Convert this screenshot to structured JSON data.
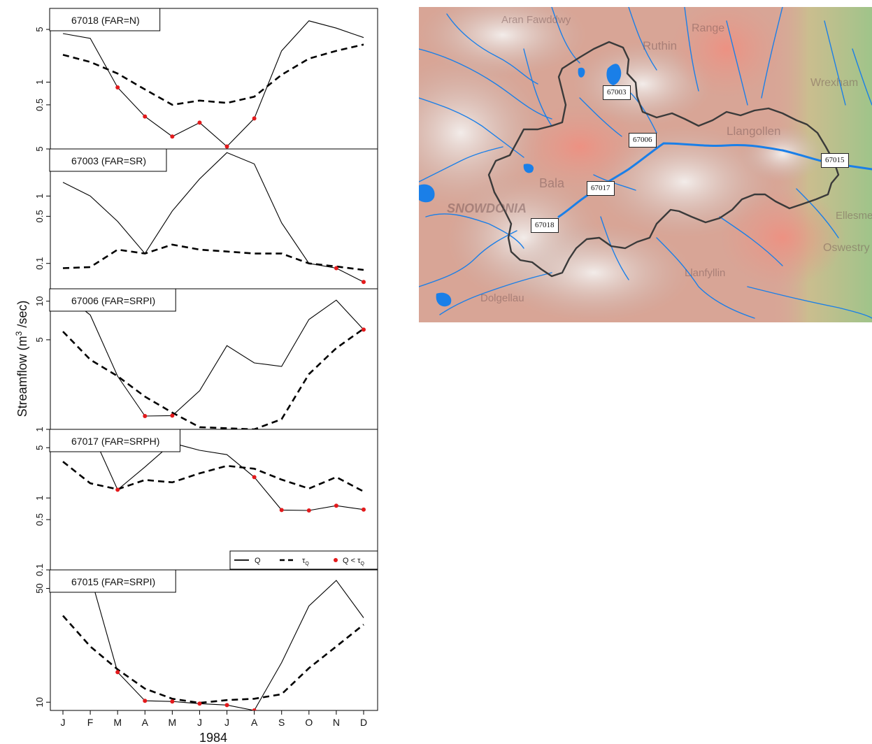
{
  "figure": {
    "ylabel": "Streamflow (m",
    "ylabel_sup": "3",
    "ylabel_tail": " /sec)",
    "xlabel": "1984",
    "months": [
      "J",
      "F",
      "M",
      "A",
      "M",
      "J",
      "J",
      "A",
      "S",
      "O",
      "N",
      "D"
    ]
  },
  "legend": {
    "q_label": "Q",
    "tau_label": "τ",
    "tau_sub": "Q",
    "below_label": "Q < τ",
    "below_sub": "Q",
    "colors": {
      "line": "#000000",
      "below_point": "#e31a1c"
    }
  },
  "chart_data": [
    {
      "type": "line",
      "title": "67018 (FAR=N)",
      "x": [
        "J",
        "F",
        "M",
        "A",
        "M",
        "J",
        "J",
        "A",
        "S",
        "O",
        "N",
        "D"
      ],
      "yscale": "log",
      "ylim": [
        0.13,
        9.5
      ],
      "yticks": [
        5,
        1,
        0.5
      ],
      "series": [
        {
          "name": "Q",
          "style": "solid",
          "values": [
            4.4,
            3.8,
            0.85,
            0.35,
            0.19,
            0.29,
            0.14,
            0.33,
            2.6,
            6.5,
            5.2,
            3.9
          ]
        },
        {
          "name": "τQ",
          "style": "dashed",
          "values": [
            2.3,
            1.85,
            1.3,
            0.8,
            0.5,
            0.57,
            0.53,
            0.64,
            1.25,
            2.05,
            2.6,
            3.15
          ]
        }
      ],
      "below_months": [
        "M",
        "A",
        "M",
        "J",
        "J",
        "A"
      ]
    },
    {
      "type": "line",
      "title": "67003 (FAR=SR)",
      "x": [
        "J",
        "F",
        "M",
        "A",
        "M",
        "J",
        "J",
        "A",
        "S",
        "O",
        "N",
        "D"
      ],
      "yscale": "log",
      "ylim": [
        0.042,
        5.0
      ],
      "yticks": [
        5,
        1,
        0.5,
        0.1
      ],
      "series": [
        {
          "name": "Q",
          "style": "solid",
          "values": [
            1.6,
            1.0,
            0.42,
            0.14,
            0.6,
            1.8,
            4.4,
            3.0,
            0.4,
            0.1,
            0.085,
            0.053
          ]
        },
        {
          "name": "τQ",
          "style": "dashed",
          "values": [
            0.085,
            0.088,
            0.16,
            0.14,
            0.19,
            0.16,
            0.15,
            0.14,
            0.14,
            0.1,
            0.09,
            0.08
          ]
        }
      ],
      "below_months": [
        "N",
        "D"
      ]
    },
    {
      "type": "line",
      "title": "67006 (FAR=SRPI)",
      "x": [
        "J",
        "F",
        "M",
        "A",
        "M",
        "J",
        "J",
        "A",
        "S",
        "O",
        "N",
        "D"
      ],
      "yscale": "log",
      "ylim": [
        1.0,
        12.5
      ],
      "yticks": [
        10,
        5,
        1
      ],
      "series": [
        {
          "name": "Q",
          "style": "solid",
          "values": [
            11.5,
            7.8,
            2.6,
            1.27,
            1.28,
            2.0,
            4.5,
            3.3,
            3.1,
            7.2,
            10.2,
            6.0
          ]
        },
        {
          "name": "τQ",
          "style": "dashed",
          "values": [
            5.8,
            3.5,
            2.6,
            1.8,
            1.35,
            1.04,
            1.02,
            1.0,
            1.2,
            2.7,
            4.3,
            6.1
          ]
        }
      ],
      "below_months": [
        "A",
        "M",
        "D"
      ]
    },
    {
      "type": "line",
      "title": "67017 (FAR=SRPH)",
      "x": [
        "J",
        "F",
        "M",
        "A",
        "M",
        "J",
        "J",
        "A",
        "S",
        "O",
        "N",
        "D"
      ],
      "yscale": "log",
      "ylim": [
        0.1,
        9.0
      ],
      "yticks": [
        5,
        1,
        0.5,
        0.1
      ],
      "series": [
        {
          "name": "Q",
          "style": "solid",
          "values": [
            12,
            9,
            1.3,
            2.7,
            5.8,
            4.6,
            4.0,
            1.95,
            0.68,
            0.67,
            0.78,
            0.69
          ]
        },
        {
          "name": "τQ",
          "style": "dashed",
          "values": [
            3.2,
            1.6,
            1.32,
            1.78,
            1.65,
            2.2,
            2.8,
            2.55,
            1.8,
            1.35,
            1.95,
            1.23
          ]
        }
      ],
      "below_months": [
        "A",
        "S",
        "O",
        "N",
        "D"
      ]
    },
    {
      "type": "line",
      "title": "67015 (FAR=SRPI)",
      "x": [
        "J",
        "F",
        "M",
        "A",
        "M",
        "J",
        "J",
        "A",
        "S",
        "O",
        "N",
        "D"
      ],
      "yscale": "log",
      "ylim": [
        8.9,
        65
      ],
      "yticks": [
        50,
        10
      ],
      "series": [
        {
          "name": "Q",
          "style": "solid",
          "values": [
            82,
            60,
            15.3,
            10.2,
            10.1,
            9.8,
            9.6,
            8.9,
            17.5,
            39,
            56,
            33
          ]
        },
        {
          "name": "τQ",
          "style": "dashed",
          "values": [
            34,
            22,
            15.9,
            12.1,
            10.5,
            9.9,
            10.3,
            10.5,
            11.2,
            16.2,
            22,
            30
          ]
        }
      ],
      "below_months": [
        "M",
        "A",
        "M",
        "J",
        "J",
        "A"
      ]
    }
  ],
  "map": {
    "gauges": [
      "67003",
      "67006",
      "67015",
      "67017",
      "67018"
    ],
    "places": [
      "Aran Fawddwy",
      "Range",
      "Ruthin",
      "Wrexham",
      "Llangollen",
      "Bala",
      "SNOWDONIA",
      "Oswestry",
      "Ellesmere",
      "Llanfyllin",
      "Dolgellau"
    ],
    "colors": {
      "river": "#1a7fe8",
      "catchment": "#3a3a3a",
      "relief": "#d9a79a",
      "lowland": "#a7c48e"
    }
  }
}
